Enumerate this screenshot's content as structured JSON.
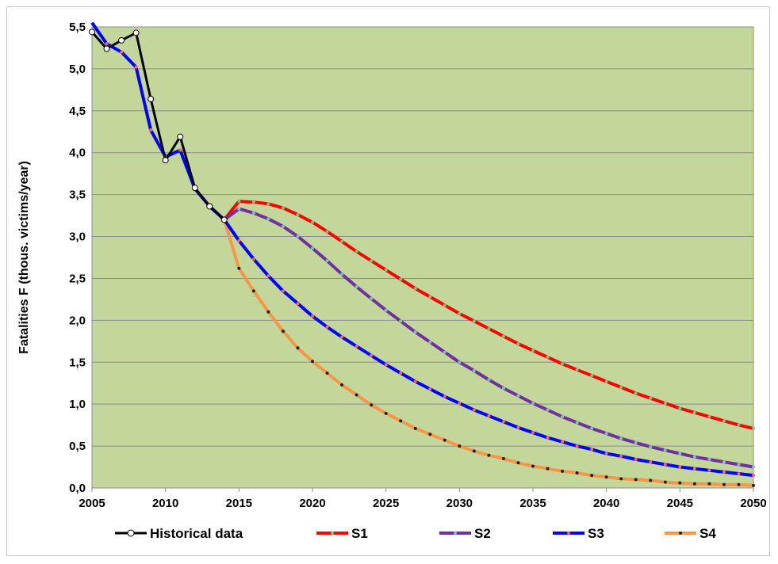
{
  "chart_data": {
    "type": "line",
    "title": "",
    "xlabel": "",
    "ylabel": "Fatalities F (thous. victims/year)",
    "xlim": [
      2005,
      2050
    ],
    "ylim": [
      0,
      5.5
    ],
    "x_ticks": [
      "2005",
      "2010",
      "2015",
      "2020",
      "2025",
      "2030",
      "2035",
      "2040",
      "2045",
      "2050"
    ],
    "y_ticks": [
      "0,0",
      "0,5",
      "1,0",
      "1,5",
      "2,0",
      "2,5",
      "3,0",
      "3,5",
      "4,0",
      "4,5",
      "5,0",
      "5,5"
    ],
    "plot_background": "#c4d79b",
    "grid": true,
    "legend_position": "bottom",
    "series": [
      {
        "name": "Historical data",
        "color": "#000000",
        "marker_color": "#ffffff",
        "x": [
          2005,
          2006,
          2007,
          2008,
          2009,
          2010,
          2011,
          2012,
          2013,
          2014
        ],
        "values": [
          5.44,
          5.24,
          5.34,
          5.43,
          4.64,
          3.91,
          4.19,
          3.58,
          3.36,
          3.2
        ]
      },
      {
        "name": "S1",
        "color": "#ff0000",
        "marker_color": "#7fbf7f",
        "x": [
          2014,
          2015,
          2016,
          2017,
          2018,
          2019,
          2020,
          2021,
          2022,
          2023,
          2024,
          2025,
          2026,
          2027,
          2028,
          2029,
          2030,
          2031,
          2032,
          2033,
          2034,
          2035,
          2036,
          2037,
          2038,
          2039,
          2040,
          2041,
          2042,
          2043,
          2044,
          2045,
          2046,
          2047,
          2048,
          2049,
          2050
        ],
        "values": [
          3.2,
          3.42,
          3.41,
          3.39,
          3.34,
          3.26,
          3.17,
          3.06,
          2.94,
          2.82,
          2.71,
          2.6,
          2.49,
          2.38,
          2.28,
          2.18,
          2.08,
          1.99,
          1.9,
          1.81,
          1.72,
          1.64,
          1.56,
          1.48,
          1.41,
          1.34,
          1.27,
          1.2,
          1.13,
          1.07,
          1.01,
          0.95,
          0.9,
          0.85,
          0.8,
          0.75,
          0.71
        ]
      },
      {
        "name": "S2",
        "color": "#7030a0",
        "marker_color": "#7fbfbf",
        "x": [
          2014,
          2015,
          2016,
          2017,
          2018,
          2019,
          2020,
          2021,
          2022,
          2023,
          2024,
          2025,
          2026,
          2027,
          2028,
          2029,
          2030,
          2031,
          2032,
          2033,
          2034,
          2035,
          2036,
          2037,
          2038,
          2039,
          2040,
          2041,
          2042,
          2043,
          2044,
          2045,
          2046,
          2047,
          2048,
          2049,
          2050
        ],
        "values": [
          3.2,
          3.33,
          3.28,
          3.21,
          3.12,
          3.0,
          2.86,
          2.71,
          2.55,
          2.4,
          2.26,
          2.12,
          1.99,
          1.86,
          1.74,
          1.62,
          1.5,
          1.4,
          1.29,
          1.19,
          1.1,
          1.01,
          0.93,
          0.85,
          0.78,
          0.71,
          0.65,
          0.59,
          0.54,
          0.49,
          0.45,
          0.41,
          0.37,
          0.34,
          0.31,
          0.28,
          0.25
        ]
      },
      {
        "name": "S3",
        "color": "#0000ff",
        "marker_color": "#ff6060",
        "x": [
          2005,
          2006,
          2007,
          2008,
          2009,
          2010,
          2011,
          2012,
          2013,
          2014,
          2015,
          2016,
          2017,
          2018,
          2019,
          2020,
          2021,
          2022,
          2023,
          2024,
          2025,
          2026,
          2027,
          2028,
          2029,
          2030,
          2031,
          2032,
          2033,
          2034,
          2035,
          2036,
          2037,
          2038,
          2039,
          2040,
          2041,
          2042,
          2043,
          2044,
          2045,
          2046,
          2047,
          2048,
          2049,
          2050
        ],
        "values": [
          5.55,
          5.3,
          5.2,
          5.02,
          4.27,
          3.95,
          4.03,
          3.57,
          3.36,
          3.2,
          2.95,
          2.73,
          2.53,
          2.35,
          2.2,
          2.05,
          1.92,
          1.8,
          1.69,
          1.58,
          1.47,
          1.37,
          1.27,
          1.18,
          1.09,
          1.01,
          0.93,
          0.86,
          0.79,
          0.72,
          0.66,
          0.6,
          0.55,
          0.5,
          0.46,
          0.41,
          0.38,
          0.34,
          0.31,
          0.28,
          0.25,
          0.23,
          0.21,
          0.19,
          0.17,
          0.15
        ]
      },
      {
        "name": "S4",
        "color": "#f79646",
        "marker_color": "#222222",
        "x": [
          2014,
          2015,
          2016,
          2017,
          2018,
          2019,
          2020,
          2021,
          2022,
          2023,
          2024,
          2025,
          2026,
          2027,
          2028,
          2029,
          2030,
          2031,
          2032,
          2033,
          2034,
          2035,
          2036,
          2037,
          2038,
          2039,
          2040,
          2041,
          2042,
          2043,
          2044,
          2045,
          2046,
          2047,
          2048,
          2049,
          2050
        ],
        "values": [
          3.2,
          2.62,
          2.35,
          2.1,
          1.87,
          1.67,
          1.51,
          1.37,
          1.23,
          1.11,
          0.99,
          0.89,
          0.8,
          0.71,
          0.64,
          0.57,
          0.5,
          0.44,
          0.39,
          0.35,
          0.3,
          0.26,
          0.23,
          0.2,
          0.18,
          0.15,
          0.13,
          0.11,
          0.1,
          0.09,
          0.07,
          0.06,
          0.05,
          0.05,
          0.04,
          0.04,
          0.03
        ]
      }
    ]
  }
}
